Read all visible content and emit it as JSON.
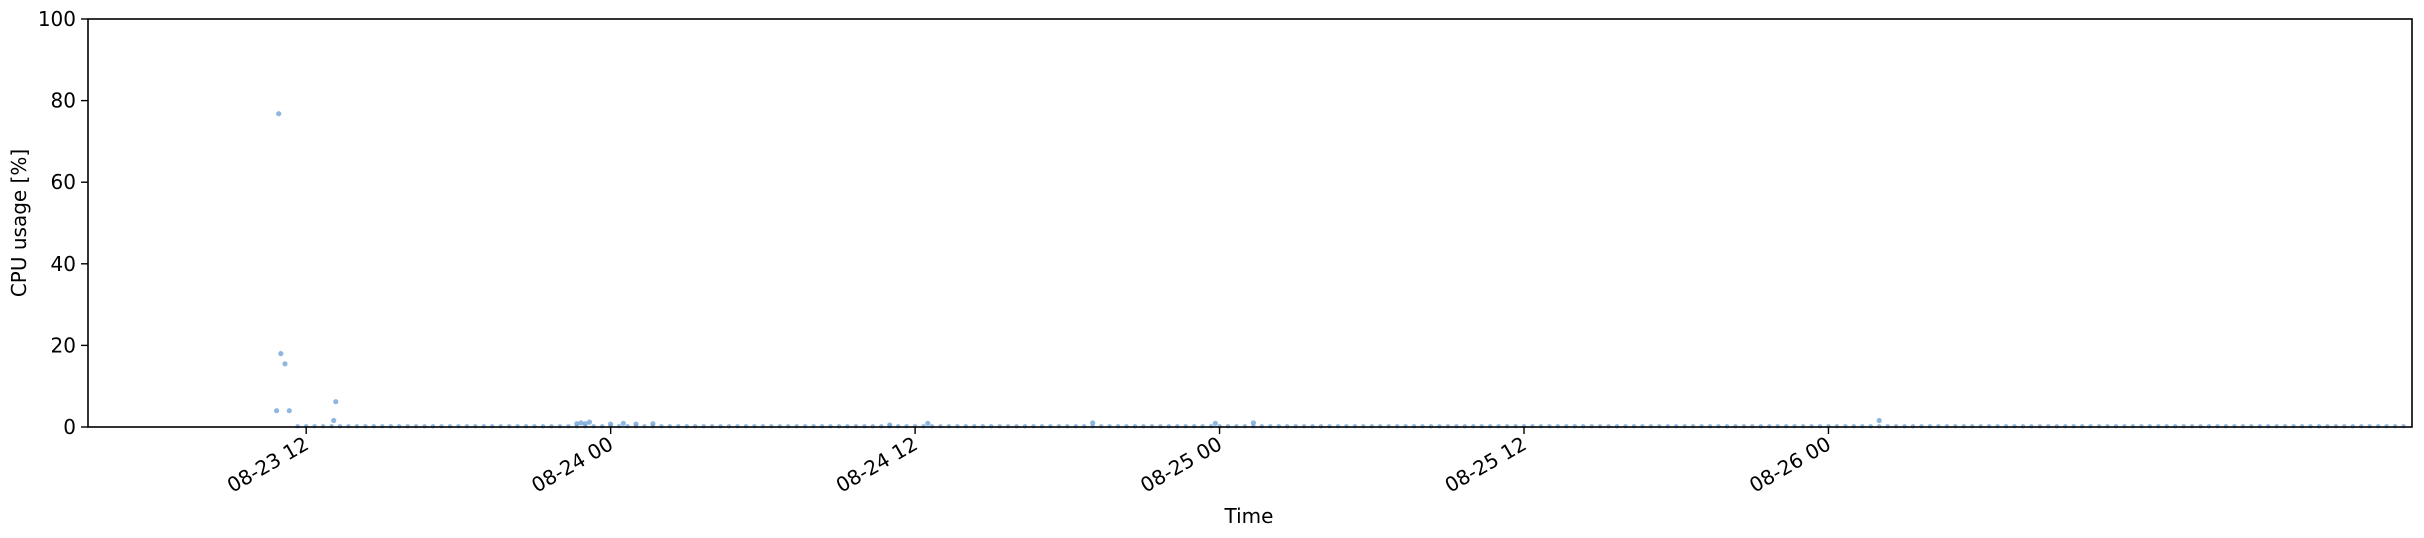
{
  "chart_data": {
    "type": "scatter",
    "title": "",
    "xlabel": "Time",
    "ylabel": "CPU usage [%]",
    "xlim": [
      "2023-08-23 03:24",
      "2023-08-26 23:00"
    ],
    "ylim": [
      0,
      100
    ],
    "yticks": [
      0,
      20,
      40,
      60,
      80,
      100
    ],
    "xticks": [
      {
        "time": "2023-08-23 12:00",
        "label": "08-23 12"
      },
      {
        "time": "2023-08-24 00:00",
        "label": "08-24 00"
      },
      {
        "time": "2023-08-24 12:00",
        "label": "08-24 12"
      },
      {
        "time": "2023-08-25 00:00",
        "label": "08-25 00"
      },
      {
        "time": "2023-08-25 12:00",
        "label": "08-25 12"
      },
      {
        "time": "2023-08-26 00:00",
        "label": "08-26 00"
      }
    ],
    "grid": false,
    "marker_color": "#6a9fd4",
    "series": [
      {
        "points": [
          {
            "x": "2023-08-23 10:50",
            "y": 4.0
          },
          {
            "x": "2023-08-23 10:55",
            "y": 76.8
          },
          {
            "x": "2023-08-23 11:00",
            "y": 18.0
          },
          {
            "x": "2023-08-23 11:10",
            "y": 15.5
          },
          {
            "x": "2023-08-23 11:20",
            "y": 4.0
          },
          {
            "x": "2023-08-23 13:05",
            "y": 1.6
          },
          {
            "x": "2023-08-23 13:10",
            "y": 6.2
          },
          {
            "x": "2023-08-23 22:40",
            "y": 0.8
          },
          {
            "x": "2023-08-23 22:50",
            "y": 1.0
          },
          {
            "x": "2023-08-23 23:00",
            "y": 0.8
          },
          {
            "x": "2023-08-23 23:10",
            "y": 1.2
          },
          {
            "x": "2023-08-24 00:00",
            "y": 0.7
          },
          {
            "x": "2023-08-24 00:30",
            "y": 0.9
          },
          {
            "x": "2023-08-24 01:00",
            "y": 0.7
          },
          {
            "x": "2023-08-24 01:40",
            "y": 0.8
          },
          {
            "x": "2023-08-24 11:00",
            "y": 0.5
          },
          {
            "x": "2023-08-24 12:30",
            "y": 0.9
          },
          {
            "x": "2023-08-24 19:00",
            "y": 1.0
          },
          {
            "x": "2023-08-24 23:50",
            "y": 0.9
          },
          {
            "x": "2023-08-25 01:20",
            "y": 1.0
          },
          {
            "x": "2023-08-26 02:00",
            "y": 1.6
          }
        ],
        "baseline": {
          "from": "2023-08-23 11:40",
          "to": "2023-08-26 22:40",
          "step_minutes": 20,
          "y": 0.2
        }
      }
    ]
  }
}
